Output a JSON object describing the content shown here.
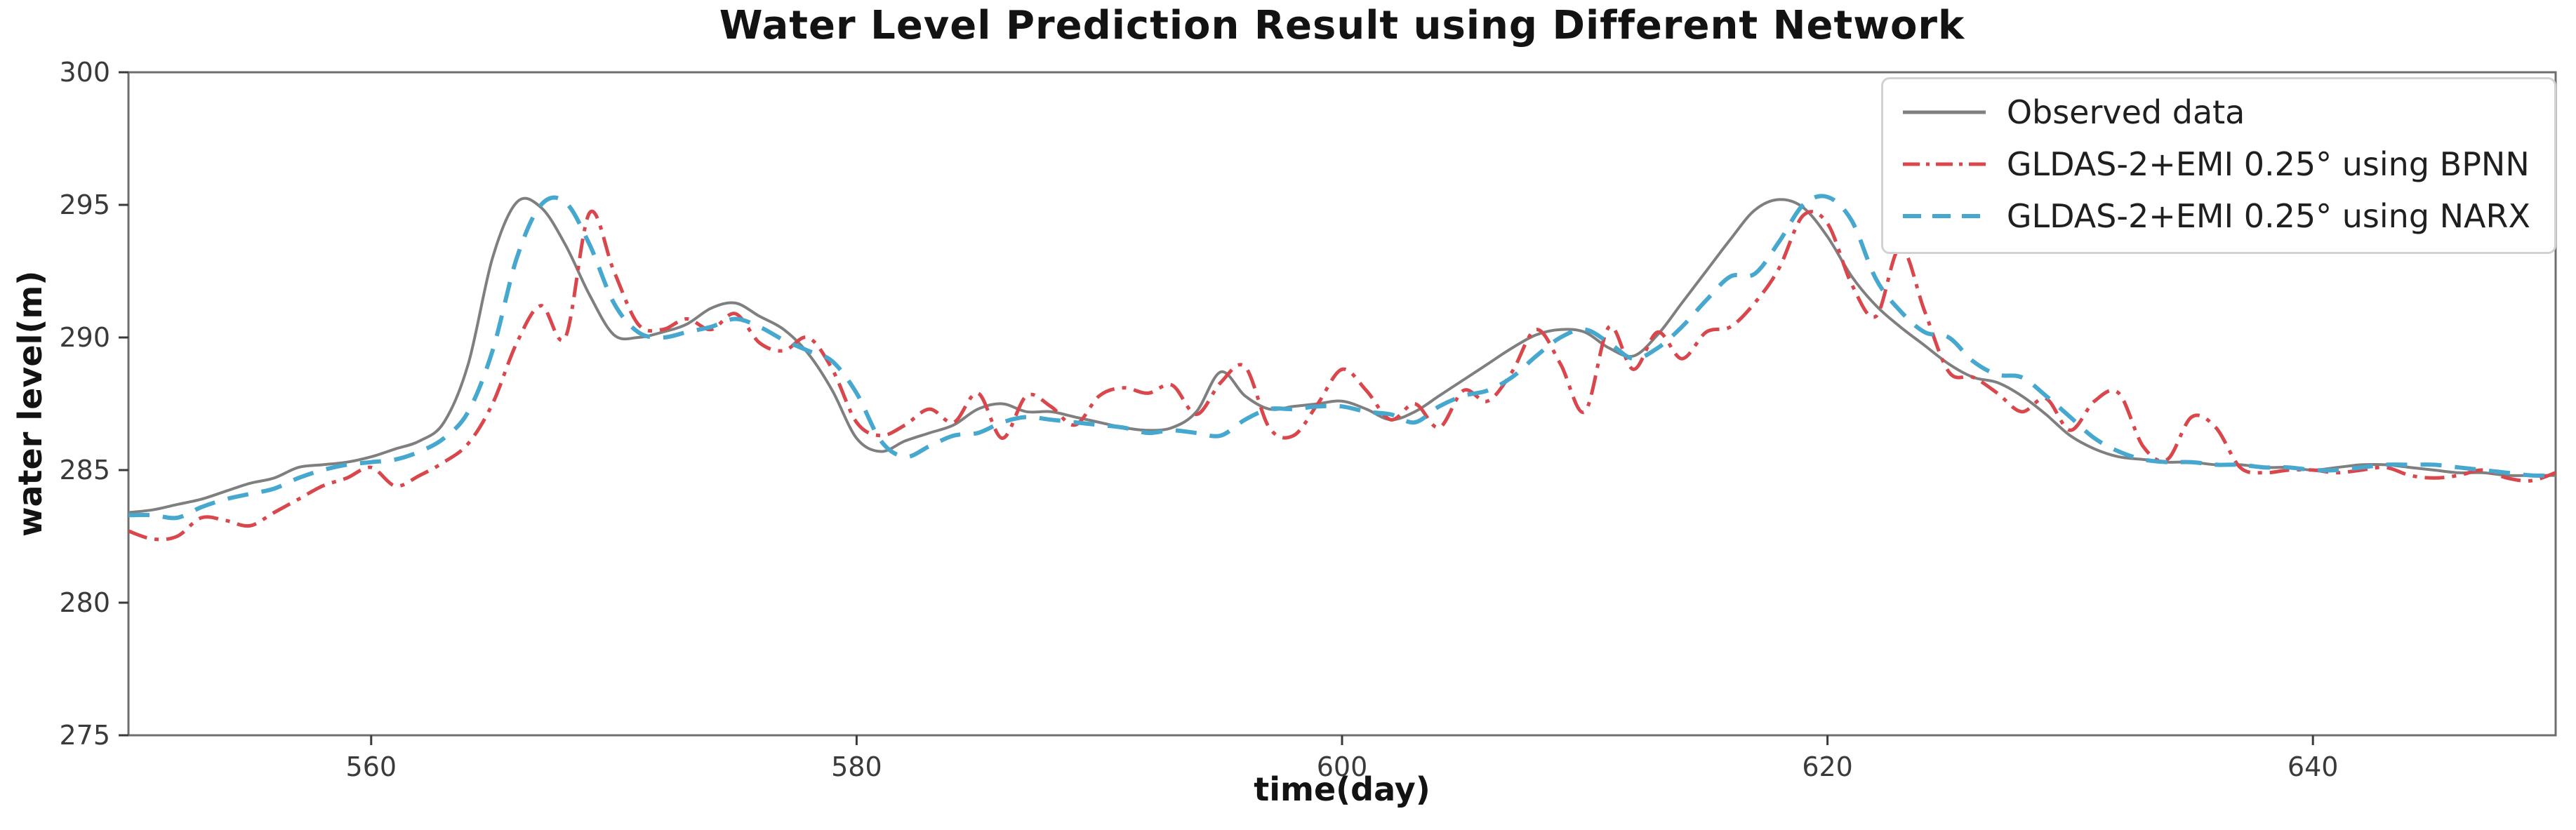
{
  "chart_data": {
    "type": "line",
    "title": "Water Level Prediction Result using Different Network",
    "xlabel": "time(day)",
    "ylabel": "water level(m)",
    "xlim": [
      550,
      650
    ],
    "ylim": [
      275,
      300
    ],
    "x_ticks": [
      560,
      580,
      600,
      620,
      640
    ],
    "y_ticks": [
      275,
      280,
      285,
      290,
      295,
      300
    ],
    "grid": false,
    "legend_position": "upper right",
    "x_start": 550,
    "x_step": 1,
    "series": [
      {
        "name": "Observed data",
        "color": "#7f7f7f",
        "style": "solid",
        "line_width": 4,
        "values": [
          283.4,
          283.5,
          283.7,
          283.9,
          284.2,
          284.5,
          284.7,
          285.1,
          285.2,
          285.3,
          285.5,
          285.8,
          286.1,
          286.8,
          289.0,
          293.0,
          295.1,
          294.9,
          293.5,
          291.6,
          290.1,
          290.0,
          290.2,
          290.5,
          291.1,
          291.3,
          290.8,
          290.3,
          289.4,
          288.0,
          286.2,
          285.7,
          286.1,
          286.4,
          286.7,
          287.3,
          287.5,
          287.2,
          287.2,
          287.0,
          286.8,
          286.6,
          286.5,
          286.6,
          287.2,
          288.7,
          287.8,
          287.3,
          287.4,
          287.5,
          287.6,
          287.3,
          286.9,
          287.2,
          287.8,
          288.4,
          289.0,
          289.6,
          290.1,
          290.3,
          290.2,
          289.6,
          289.3,
          290.1,
          291.3,
          292.5,
          293.7,
          294.8,
          295.2,
          294.9,
          293.8,
          292.3,
          291.2,
          290.4,
          289.7,
          289.0,
          288.5,
          288.3,
          287.8,
          287.1,
          286.3,
          285.8,
          285.5,
          285.4,
          285.3,
          285.3,
          285.2,
          285.2,
          285.1,
          285.1,
          285.0,
          285.1,
          285.2,
          285.2,
          285.1,
          285.0,
          284.9,
          284.9,
          284.8,
          284.8,
          284.8
        ]
      },
      {
        "name": "GLDAS-2+EMI 0.25° using BPNN",
        "color": "#d9464b",
        "style": "dashdot",
        "line_width": 5,
        "values": [
          282.7,
          282.4,
          282.5,
          283.2,
          283.1,
          282.9,
          283.4,
          283.9,
          284.4,
          284.7,
          285.1,
          284.4,
          284.8,
          285.3,
          286.0,
          287.5,
          289.8,
          291.2,
          290.0,
          294.7,
          292.5,
          290.5,
          290.3,
          290.7,
          290.3,
          290.9,
          289.8,
          289.5,
          290.0,
          288.8,
          286.8,
          286.3,
          286.7,
          287.3,
          286.8,
          287.9,
          286.2,
          287.8,
          287.4,
          286.7,
          287.8,
          288.1,
          287.9,
          288.2,
          287.1,
          288.3,
          288.9,
          286.6,
          286.3,
          287.5,
          288.8,
          288.0,
          286.9,
          287.5,
          286.6,
          288.0,
          287.6,
          288.7,
          290.3,
          289.0,
          287.2,
          290.4,
          288.8,
          290.2,
          289.2,
          290.2,
          290.4,
          291.3,
          292.6,
          294.6,
          294.3,
          292.0,
          290.8,
          293.4,
          291.0,
          288.7,
          288.5,
          287.9,
          287.2,
          287.7,
          286.5,
          287.6,
          287.9,
          285.9,
          285.4,
          287.0,
          286.6,
          285.1,
          284.9,
          285.0,
          285.0,
          284.9,
          285.0,
          285.1,
          284.8,
          284.7,
          284.8,
          285.0,
          284.7,
          284.6,
          284.9
        ]
      },
      {
        "name": "GLDAS-2+EMI 0.25° using NARX",
        "color": "#46a8cf",
        "style": "dashed",
        "line_width": 6,
        "values": [
          283.3,
          283.3,
          283.2,
          283.6,
          283.9,
          284.1,
          284.3,
          284.7,
          285.0,
          285.2,
          285.3,
          285.4,
          285.7,
          286.2,
          287.2,
          289.5,
          293.0,
          295.0,
          295.1,
          293.5,
          291.3,
          290.2,
          290.0,
          290.2,
          290.4,
          290.7,
          290.4,
          289.9,
          289.5,
          289.1,
          287.9,
          286.1,
          285.5,
          285.9,
          286.3,
          286.4,
          286.8,
          287.0,
          286.9,
          286.8,
          286.7,
          286.6,
          286.4,
          286.5,
          286.4,
          286.3,
          286.9,
          287.3,
          287.3,
          287.4,
          287.4,
          287.2,
          287.1,
          286.8,
          287.4,
          287.8,
          288.0,
          288.5,
          289.3,
          290.0,
          290.3,
          289.8,
          289.2,
          289.6,
          290.4,
          291.4,
          292.3,
          292.4,
          293.6,
          295.0,
          295.3,
          294.4,
          292.2,
          291.0,
          290.2,
          290.0,
          289.1,
          288.6,
          288.5,
          287.8,
          287.0,
          286.2,
          285.7,
          285.4,
          285.3,
          285.3,
          285.2,
          285.2,
          285.1,
          285.1,
          285.0,
          285.0,
          285.1,
          285.2,
          285.2,
          285.2,
          285.1,
          285.0,
          284.9,
          284.8,
          284.8
        ]
      }
    ]
  }
}
